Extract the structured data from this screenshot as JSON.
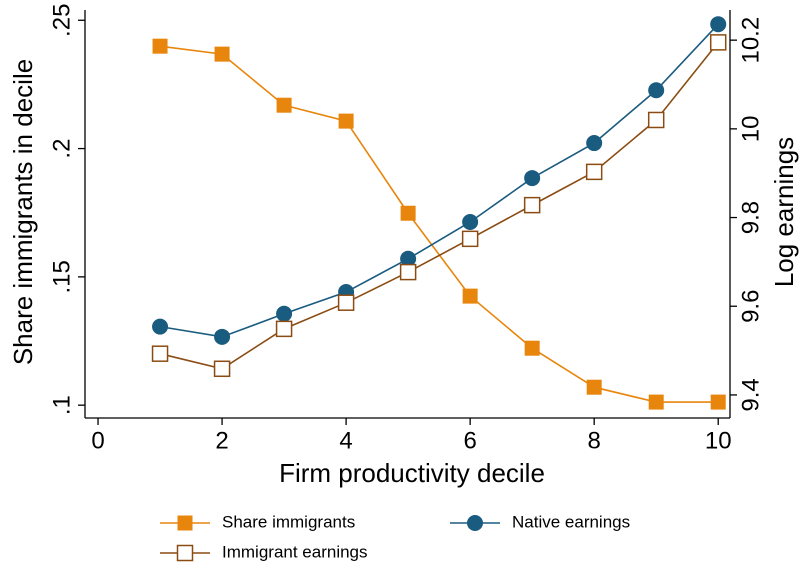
{
  "chart_data": {
    "type": "line",
    "xlabel": "Firm productivity decile",
    "ylabel": "Share immigrants in decile",
    "y2label": "Log earnings",
    "x": [
      1,
      2,
      3,
      4,
      5,
      6,
      7,
      8,
      9,
      10
    ],
    "xlim": [
      -0.21,
      10.19
    ],
    "xticks": [
      0,
      2,
      4,
      6,
      8,
      10
    ],
    "ylim": [
      0.095,
      0.254
    ],
    "yticks": [
      {
        "value": 0.1,
        "label": ".1"
      },
      {
        "value": 0.15,
        "label": ".15"
      },
      {
        "value": 0.2,
        "label": ".2"
      },
      {
        "value": 0.25,
        "label": ".25"
      }
    ],
    "y2lim": [
      9.348,
      10.268
    ],
    "y2ticks": [
      9.4,
      9.6,
      9.8,
      10,
      10.2
    ],
    "grid": false,
    "series": [
      {
        "name": "Share immigrants",
        "color": "#e8850c",
        "marker": "square",
        "values": [
          0.2399,
          0.2368,
          0.2169,
          0.2107,
          0.1748,
          0.1425,
          0.1222,
          0.107,
          0.1012,
          0.1012
        ]
      },
      {
        "name": "Native earnings",
        "color": "#1a5b80",
        "marker": "circle",
        "axis": "y2",
        "values": [
          9.554,
          9.531,
          9.583,
          9.632,
          9.707,
          9.79,
          9.889,
          9.968,
          10.087,
          10.236
        ]
      },
      {
        "name": "Immigrant earnings",
        "color": "#8a4c12",
        "marker": "hollow-square",
        "axis": "y2",
        "values": [
          9.493,
          9.459,
          9.549,
          9.608,
          9.677,
          9.752,
          9.828,
          9.903,
          10.02,
          10.195
        ]
      }
    ]
  }
}
